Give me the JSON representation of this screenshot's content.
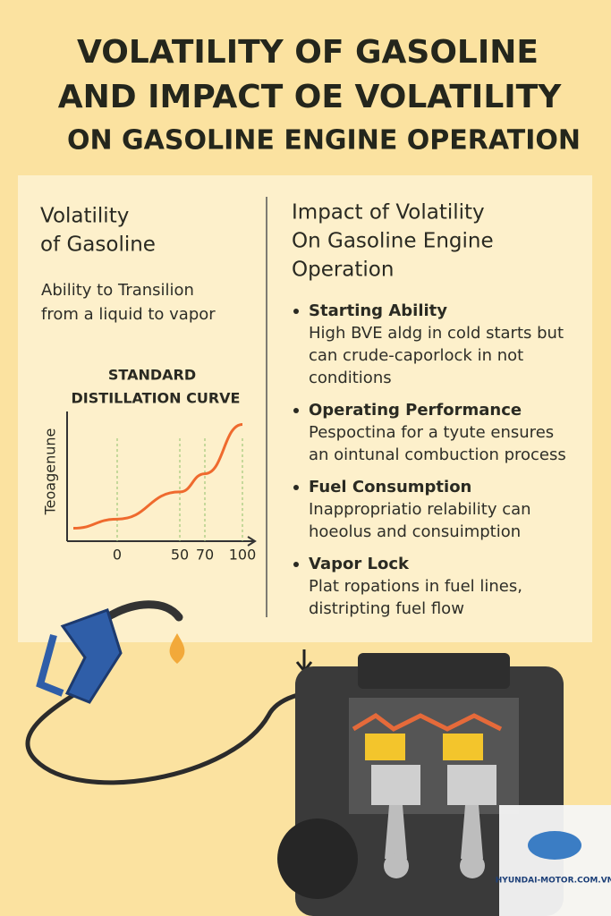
{
  "title": [
    "VOLATILITY OF GASOLINE",
    "AND IMPACT OE VOLATILITY",
    "ON GASOLINE ENGINE OPERATION"
  ],
  "left": {
    "heading": [
      "Volatility",
      "of Gasoline"
    ],
    "description": [
      "Ability to Transilion",
      "from a liquid to vapor"
    ]
  },
  "chart_data": {
    "type": "line",
    "title": [
      "STANDARD",
      "DISTILLATION CURVE"
    ],
    "y_label": "Teoagenune",
    "x": [
      -35,
      0,
      50,
      70,
      100
    ],
    "values": [
      10,
      17,
      38,
      52,
      90
    ],
    "color": "#ef6a2e",
    "xlim": [
      -40,
      110
    ],
    "ylim": [
      0,
      100
    ],
    "xticks": [
      0,
      50,
      70,
      100
    ]
  },
  "right": {
    "heading": [
      "Impact of Volatility",
      "On Gasoline Engine",
      "Operation"
    ],
    "items": [
      {
        "title": "Starting Ability",
        "lines": [
          "High BVE aldg in cold starts but",
          "can crude-caporlock in not",
          "conditions"
        ]
      },
      {
        "title": "Operating Performance",
        "lines": [
          "Pespoctina for  a tyute ensures",
          "an ointunal combuction process"
        ]
      },
      {
        "title": "Fuel Consumption",
        "lines": [
          "Inappropriatio relability can",
          "hoeolus and consuimption"
        ]
      },
      {
        "title": "Vapor Lock",
        "lines": [
          "Plat ropations in fuel lines,",
          "distripting fuel flow"
        ]
      }
    ]
  },
  "watermark": "HYUNDAI-MOTOR.COM.VN"
}
